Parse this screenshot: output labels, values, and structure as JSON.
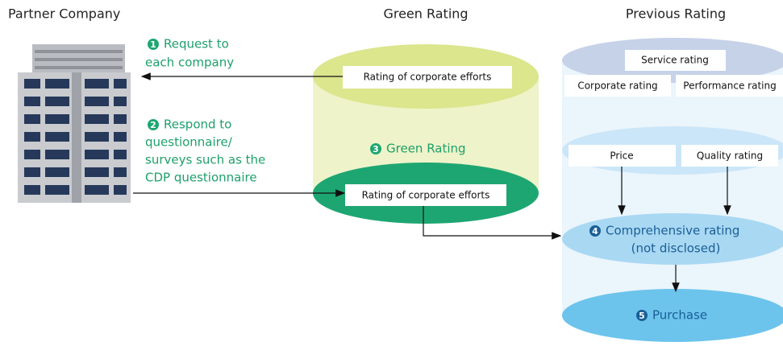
{
  "headers": [
    "Partner Company",
    "Green Rating",
    "Previous Rating"
  ],
  "steps": [
    {
      "number": 1,
      "lines": [
        "Request to",
        "each company"
      ]
    },
    {
      "number": 2,
      "lines": [
        "Respond to",
        "questionnaire/",
        "surveys such as the",
        "CDP questionnaire"
      ]
    },
    {
      "number": 3,
      "lines": [
        "Green Rating"
      ]
    },
    {
      "number": 4,
      "lines": [
        "Comprehensive rating",
        "(not disclosed)"
      ]
    },
    {
      "number": 5,
      "lines": [
        "Purchase"
      ]
    }
  ],
  "green_rating": {
    "top_box": "Rating of corporate efforts",
    "bottom_box": "Rating of corporate efforts"
  },
  "previous_rating": {
    "service": "Service rating",
    "corporate": "Corporate rating",
    "performance": "Performance rating",
    "price": "Price",
    "quality": "Quality rating"
  }
}
